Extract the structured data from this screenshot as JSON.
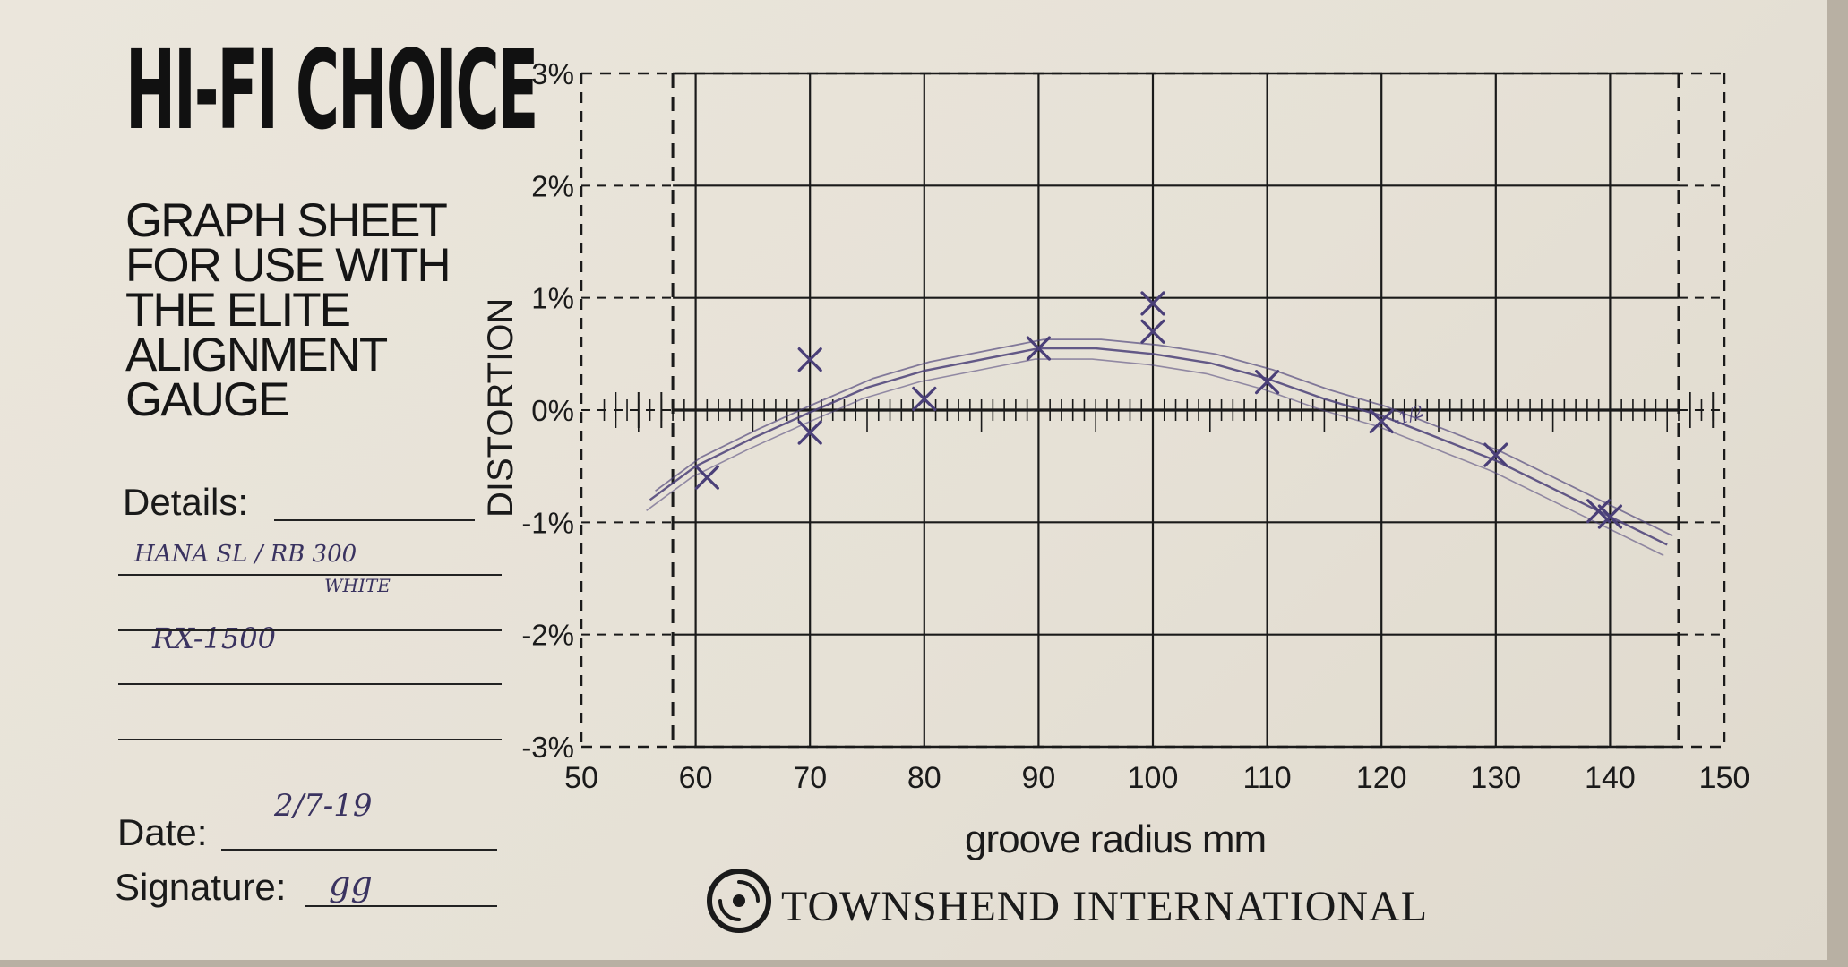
{
  "sheet": {
    "brand": "HI-FI CHOICE",
    "title_lines": [
      "GRAPH SHEET",
      "FOR USE WITH",
      "THE ELITE",
      "ALIGNMENT",
      "GAUGE"
    ],
    "details_label": "Details:",
    "details_handwritten": [
      "HANA SL / RB 300",
      "WHITE",
      "RX-1500"
    ],
    "date_label": "Date:",
    "date_value": "2/7-19",
    "signature_label": "Signature:",
    "signature_value": "gg",
    "company": "TOWNSHEND INTERNATIONAL",
    "company_logo_icon": "swirl-logo-icon"
  },
  "chart_data": {
    "type": "scatter",
    "xlabel": "groove radius mm",
    "ylabel": "DISTORTION",
    "xlim": [
      50,
      150
    ],
    "ylim": [
      -3,
      3
    ],
    "x_ticks": [
      50,
      60,
      70,
      80,
      90,
      100,
      110,
      120,
      130,
      140,
      150
    ],
    "x_tick_labels": [
      "50",
      "60",
      "70",
      "80",
      "90",
      "100",
      "110",
      "120",
      "130",
      "140",
      "150"
    ],
    "y_ticks": [
      3,
      2,
      1,
      0,
      -1,
      -2,
      -3
    ],
    "y_tick_labels": [
      "3%",
      "2%",
      "1%",
      "0%",
      "-1%",
      "-2%",
      "-3%"
    ],
    "grid": true,
    "reference_lines_x": [
      58,
      146
    ],
    "series": [
      {
        "marker": "x",
        "x": [
          61,
          70,
          70,
          80,
          90,
          100,
          100,
          110,
          120,
          130,
          139,
          140
        ],
        "y": [
          -0.6,
          0.45,
          -0.2,
          0.1,
          0.55,
          0.95,
          0.7,
          0.25,
          -0.1,
          -0.4,
          -0.9,
          -0.95
        ]
      },
      {
        "style": "hand-drawn curve",
        "x": [
          56,
          60,
          65,
          70,
          75,
          80,
          85,
          90,
          95,
          100,
          105,
          110,
          115,
          120,
          125,
          130,
          135,
          140,
          145
        ],
        "y": [
          -0.8,
          -0.5,
          -0.25,
          -0.02,
          0.2,
          0.35,
          0.45,
          0.55,
          0.55,
          0.5,
          0.42,
          0.28,
          0.1,
          -0.05,
          -0.25,
          -0.45,
          -0.7,
          -0.95,
          -1.2
        ]
      }
    ],
    "annotations": [
      "-1/2"
    ]
  },
  "colors": {
    "ink": "#1a1a1a",
    "pen": "#4a3f78",
    "paper": "#e8e3d9"
  }
}
